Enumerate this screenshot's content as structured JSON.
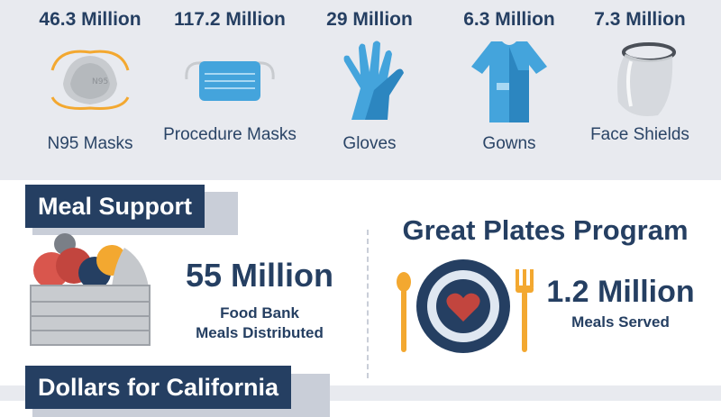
{
  "ppe": [
    {
      "count": "46.3 Million",
      "label": "N95 Masks",
      "icon": "n95-mask-icon"
    },
    {
      "count": "117.2 Million",
      "label": "Procedure Masks",
      "icon": "procedure-mask-icon"
    },
    {
      "count": "29 Million",
      "label": "Gloves",
      "icon": "gloves-icon"
    },
    {
      "count": "6.3 Million",
      "label": "Gowns",
      "icon": "gown-icon"
    },
    {
      "count": "7.3 Million",
      "label": "Face Shields",
      "icon": "face-shield-icon"
    }
  ],
  "meal_support": {
    "heading": "Meal Support",
    "food_bank": {
      "count": "55 Million",
      "label_line1": "Food Bank",
      "label_line2": "Meals Distributed",
      "icon": "produce-crate-icon"
    },
    "great_plates": {
      "title": "Great Plates Program",
      "count": "1.2 Million",
      "label": "Meals Served",
      "icon": "heart-plate-icon"
    }
  },
  "dollars": {
    "heading": "Dollars for California"
  },
  "colors": {
    "navy": "#253f62",
    "band": "#e8eaef",
    "icon_blue": "#44a4dc",
    "accent_orange": "#f3a830"
  }
}
